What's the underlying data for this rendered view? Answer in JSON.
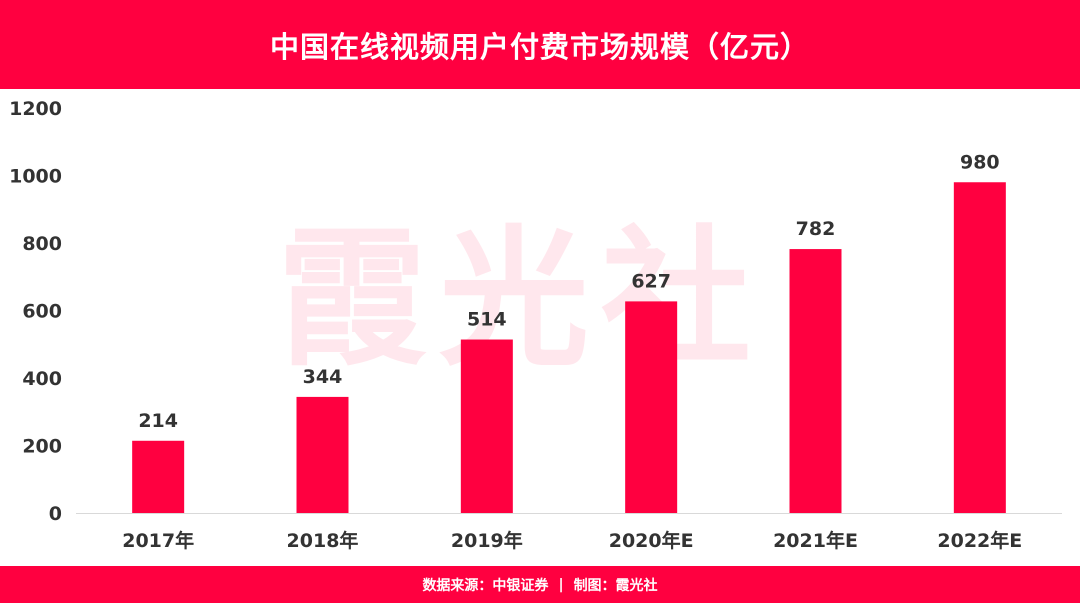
{
  "chart_data": {
    "type": "bar",
    "title": "中国在线视频用户付费市场规模（亿元）",
    "categories": [
      "2017年",
      "2018年",
      "2019年",
      "2020年E",
      "2021年E",
      "2022年E"
    ],
    "values": [
      214,
      344,
      514,
      627,
      782,
      980
    ],
    "value_labels": [
      "214",
      "344",
      "514",
      "627",
      "782",
      "980"
    ],
    "yticks": [
      "0",
      "200",
      "400",
      "600",
      "800",
      "1000",
      "1200"
    ],
    "ylim": [
      0,
      1200
    ],
    "grid": false,
    "bar_color": "#ff0040",
    "text_color": "#333333"
  },
  "footer": {
    "source": "数据来源：中银证券",
    "separator": "|",
    "credit": "制图：霞光社"
  },
  "watermark": "霞光社"
}
